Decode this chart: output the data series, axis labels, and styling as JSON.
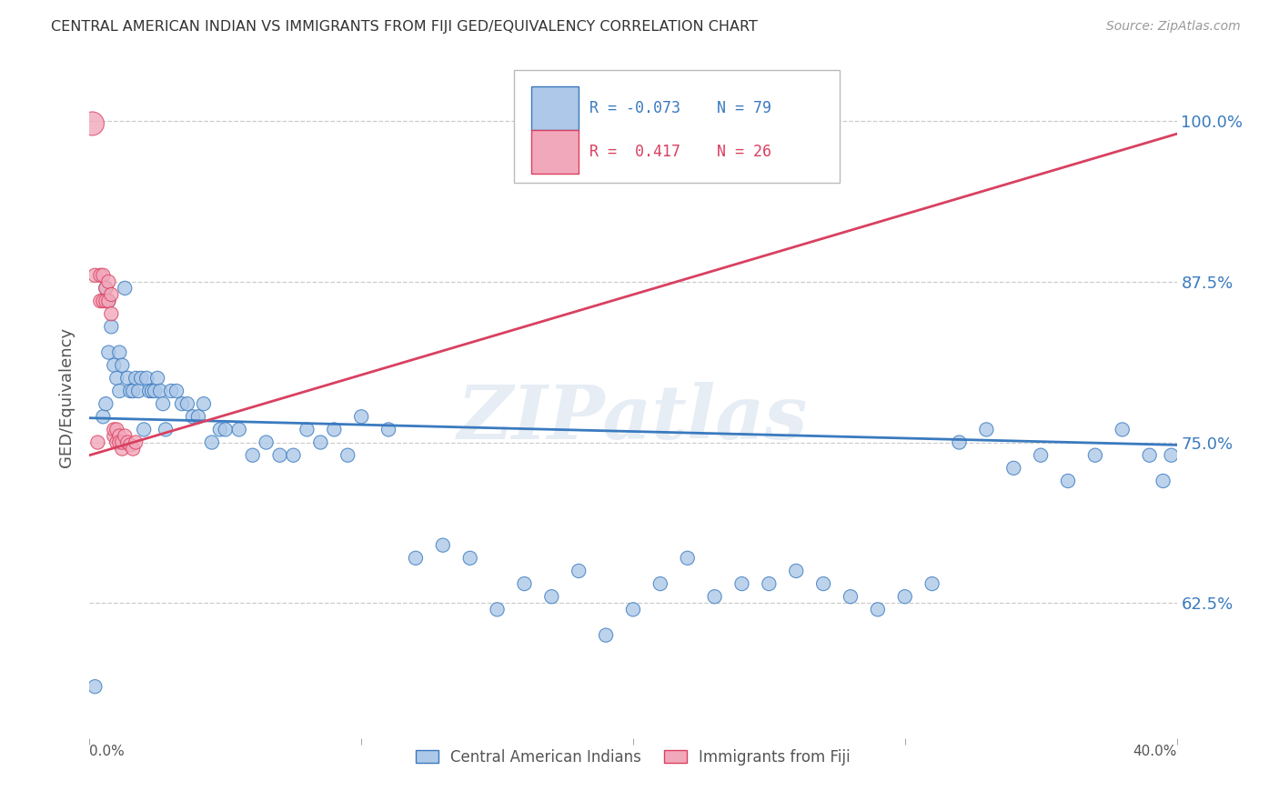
{
  "title": "CENTRAL AMERICAN INDIAN VS IMMIGRANTS FROM FIJI GED/EQUIVALENCY CORRELATION CHART",
  "source": "Source: ZipAtlas.com",
  "ylabel": "GED/Equivalency",
  "yticks": [
    0.625,
    0.75,
    0.875,
    1.0
  ],
  "ytick_labels": [
    "62.5%",
    "75.0%",
    "87.5%",
    "100.0%"
  ],
  "xlim": [
    0.0,
    0.4
  ],
  "ylim": [
    0.52,
    1.05
  ],
  "legend_blue_r": "R = -0.073",
  "legend_blue_n": "N = 79",
  "legend_pink_r": "R =  0.417",
  "legend_pink_n": "N = 26",
  "blue_color": "#adc8e8",
  "pink_color": "#f2a8bb",
  "blue_line_color": "#3a7abf",
  "pink_line_color": "#d94060",
  "watermark": "ZIPatlas",
  "blue_trend_x": [
    0.0,
    0.4
  ],
  "blue_trend_y": [
    0.769,
    0.748
  ],
  "pink_trend_x": [
    0.0,
    0.4
  ],
  "pink_trend_y": [
    0.74,
    0.99
  ],
  "blue_scatter_x": [
    0.002,
    0.005,
    0.006,
    0.006,
    0.007,
    0.007,
    0.008,
    0.009,
    0.01,
    0.011,
    0.011,
    0.012,
    0.013,
    0.014,
    0.015,
    0.016,
    0.017,
    0.018,
    0.019,
    0.02,
    0.021,
    0.022,
    0.023,
    0.024,
    0.025,
    0.026,
    0.027,
    0.028,
    0.03,
    0.032,
    0.034,
    0.036,
    0.038,
    0.04,
    0.042,
    0.045,
    0.048,
    0.05,
    0.055,
    0.06,
    0.065,
    0.07,
    0.075,
    0.08,
    0.085,
    0.09,
    0.095,
    0.1,
    0.11,
    0.12,
    0.13,
    0.14,
    0.15,
    0.16,
    0.17,
    0.18,
    0.19,
    0.2,
    0.21,
    0.22,
    0.23,
    0.24,
    0.25,
    0.26,
    0.27,
    0.28,
    0.29,
    0.3,
    0.31,
    0.32,
    0.33,
    0.34,
    0.35,
    0.36,
    0.37,
    0.38,
    0.39,
    0.395,
    0.398
  ],
  "blue_scatter_y": [
    0.56,
    0.77,
    0.78,
    0.87,
    0.82,
    0.86,
    0.84,
    0.81,
    0.8,
    0.82,
    0.79,
    0.81,
    0.87,
    0.8,
    0.79,
    0.79,
    0.8,
    0.79,
    0.8,
    0.76,
    0.8,
    0.79,
    0.79,
    0.79,
    0.8,
    0.79,
    0.78,
    0.76,
    0.79,
    0.79,
    0.78,
    0.78,
    0.77,
    0.77,
    0.78,
    0.75,
    0.76,
    0.76,
    0.76,
    0.74,
    0.75,
    0.74,
    0.74,
    0.76,
    0.75,
    0.76,
    0.74,
    0.77,
    0.76,
    0.66,
    0.67,
    0.66,
    0.62,
    0.64,
    0.63,
    0.65,
    0.6,
    0.62,
    0.64,
    0.66,
    0.63,
    0.64,
    0.64,
    0.65,
    0.64,
    0.63,
    0.62,
    0.63,
    0.64,
    0.75,
    0.76,
    0.73,
    0.74,
    0.72,
    0.74,
    0.76,
    0.74,
    0.72,
    0.74
  ],
  "pink_scatter_x": [
    0.001,
    0.002,
    0.003,
    0.004,
    0.004,
    0.005,
    0.005,
    0.006,
    0.006,
    0.007,
    0.007,
    0.008,
    0.008,
    0.009,
    0.009,
    0.01,
    0.01,
    0.011,
    0.011,
    0.012,
    0.012,
    0.013,
    0.014,
    0.015,
    0.016,
    0.017
  ],
  "pink_scatter_y": [
    0.998,
    0.88,
    0.75,
    0.88,
    0.86,
    0.88,
    0.86,
    0.87,
    0.86,
    0.875,
    0.86,
    0.865,
    0.85,
    0.755,
    0.76,
    0.75,
    0.76,
    0.755,
    0.75,
    0.745,
    0.75,
    0.755,
    0.75,
    0.748,
    0.745,
    0.75
  ]
}
